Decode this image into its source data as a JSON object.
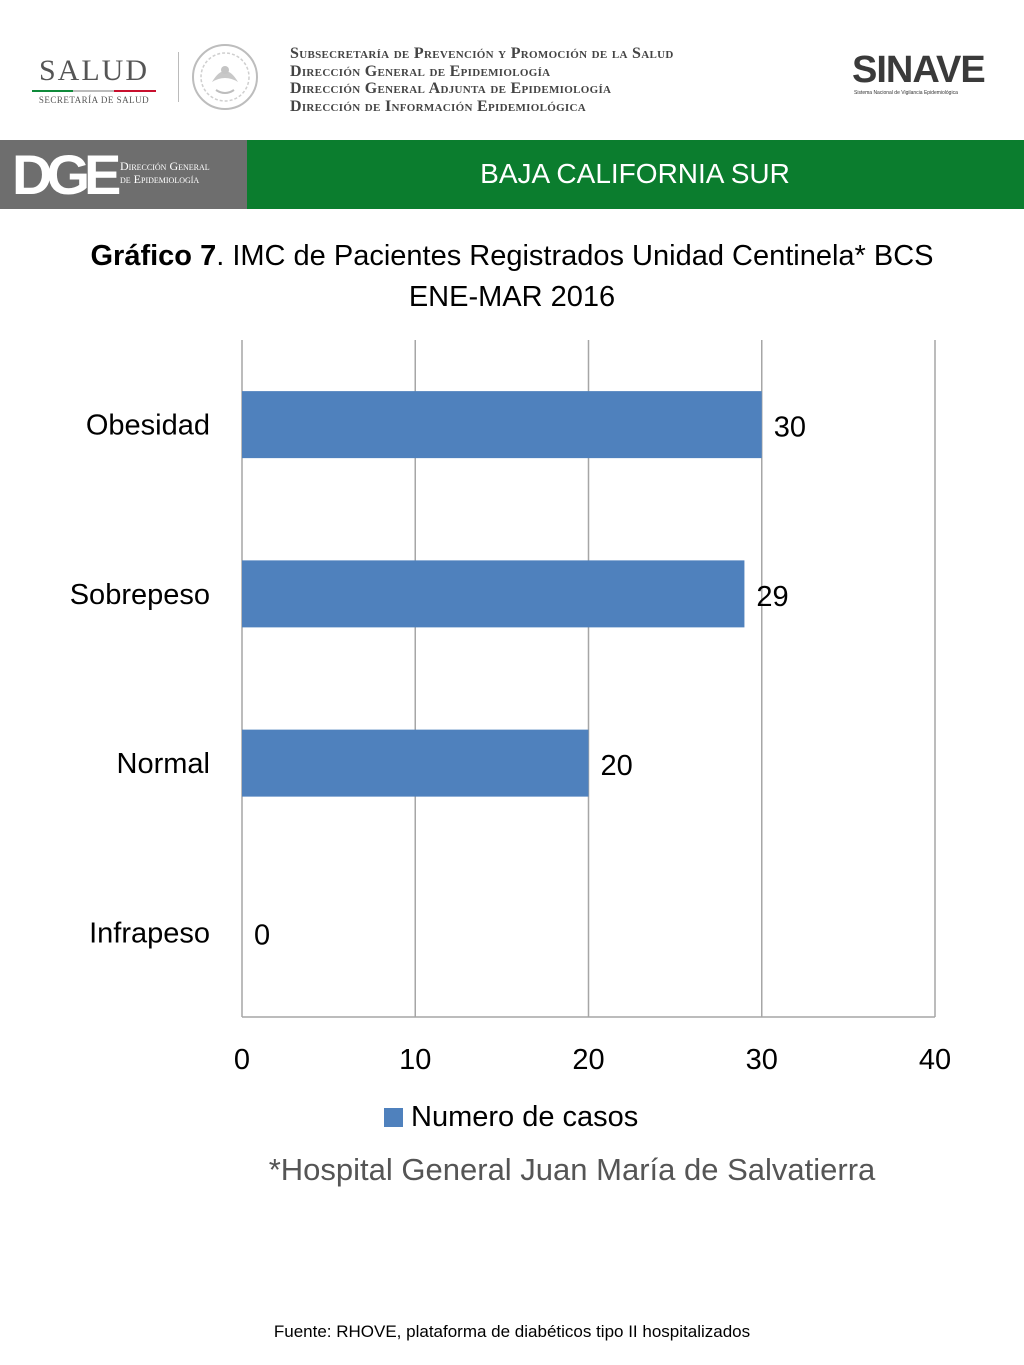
{
  "header": {
    "salud_word": "SALUD",
    "salud_sub": "SECRETARÍA DE SALUD",
    "agency_lines": [
      "Subsecretaría de Prevención y Promoción de la Salud",
      "Dirección General de Epidemiología",
      "Dirección General Adjunta de Epidemiología",
      "Dirección de Información Epidemiológica"
    ],
    "sinave_word": "SINAVE",
    "sinave_sub": "Sistema Nacional de Vigilancia Epidemiológica"
  },
  "banner": {
    "dge_letters": "DGE",
    "dge_line1": "Dirección General",
    "dge_line2": "de Epidemiología",
    "state": "BAJA CALIFORNIA SUR",
    "colors": {
      "dge_bg": "#6e6e6e",
      "green_bg": "#0b7d2e"
    }
  },
  "title": {
    "bold": "Gráfico 7",
    "rest": ". IMC de Pacientes Registrados Unidad Centinela* BCS",
    "line2": "ENE-MAR 2016"
  },
  "chart_data": {
    "type": "bar",
    "orientation": "horizontal",
    "categories": [
      "Obesidad",
      "Sobrepeso",
      "Normal",
      "Infrapeso"
    ],
    "series": [
      {
        "name": "Numero de casos",
        "values": [
          30,
          29,
          20,
          0
        ],
        "color": "#4f81bd"
      }
    ],
    "data_labels": [
      "30",
      "29",
      "20",
      "0"
    ],
    "xlim": [
      0,
      40
    ],
    "xticks": [
      0,
      10,
      20,
      30,
      40
    ],
    "grid": true,
    "legend_position": "bottom"
  },
  "legend": {
    "label": "Numero de casos"
  },
  "footnote": "*Hospital General Juan María de Salvatierra",
  "source": "Fuente: RHOVE, plataforma de diabéticos tipo II hospitalizados"
}
